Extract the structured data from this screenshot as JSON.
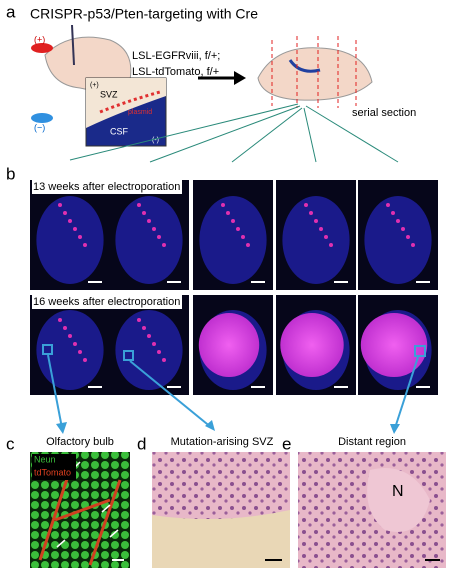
{
  "panel_a": {
    "label": "a",
    "title": "CRISPR-p53/Pten-targeting with Cre",
    "electrode_plus": "(+)",
    "electrode_minus": "(−)",
    "genotype_line1": "LSL-EGFRviii, f/+;",
    "genotype_line2": "LSL-tdTomato, f/+",
    "inset_svz": "SVZ",
    "inset_plasmid": "plasmid",
    "inset_csf": "CSF",
    "inset_plus": "(+)",
    "inset_minus": "(-)",
    "serial_section": "serial section"
  },
  "panel_b": {
    "label": "b",
    "row1_title": "13 weeks after electroporation",
    "row2_title": "16 weeks after electroporation"
  },
  "panel_c": {
    "label": "c",
    "title": "Olfactory bulb",
    "legend_neun": "Neun",
    "legend_tdtomato": "tdTomato"
  },
  "panel_d": {
    "label": "d",
    "title": "Mutation-arising SVZ"
  },
  "panel_e": {
    "label": "e",
    "title": "Distant region",
    "annotation": "N"
  }
}
